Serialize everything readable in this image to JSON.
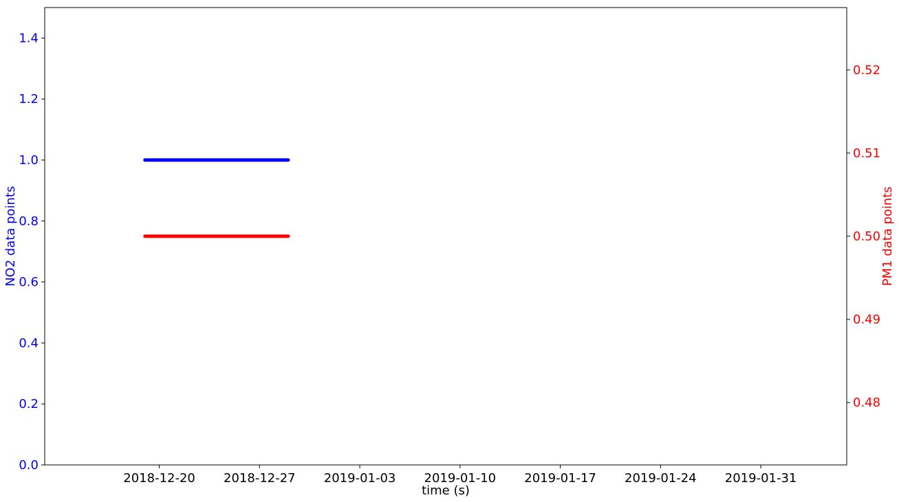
{
  "chart_data": {
    "type": "scatter",
    "xlabel": "time (s)",
    "x_axis": {
      "type": "date",
      "range": [
        "2018-12-12",
        "2019-02-06"
      ],
      "ticks": [
        "2018-12-20",
        "2018-12-27",
        "2019-01-03",
        "2019-01-10",
        "2019-01-17",
        "2019-01-24",
        "2019-01-31"
      ]
    },
    "y_left": {
      "label": "NO2 data points",
      "color": "#0000ff",
      "range": [
        0,
        1.5
      ],
      "ticks": [
        "0.0",
        "0.2",
        "0.4",
        "0.6",
        "0.8",
        "1.0",
        "1.2",
        "1.4"
      ]
    },
    "y_right": {
      "label": "PM1 data points",
      "color": "#ff0000",
      "range": [
        0.4725,
        0.5275
      ],
      "ticks": [
        "0.48",
        "0.49",
        "0.50",
        "0.51",
        "0.52"
      ]
    },
    "grid": false,
    "series": [
      {
        "axis": "left",
        "color": "#0000ff",
        "x_start": "2018-12-19",
        "x_end": "2018-12-29",
        "value": 1.0
      },
      {
        "axis": "right",
        "color": "#ff0000",
        "x_start": "2018-12-19",
        "x_end": "2018-12-29",
        "value": 0.5
      }
    ]
  }
}
